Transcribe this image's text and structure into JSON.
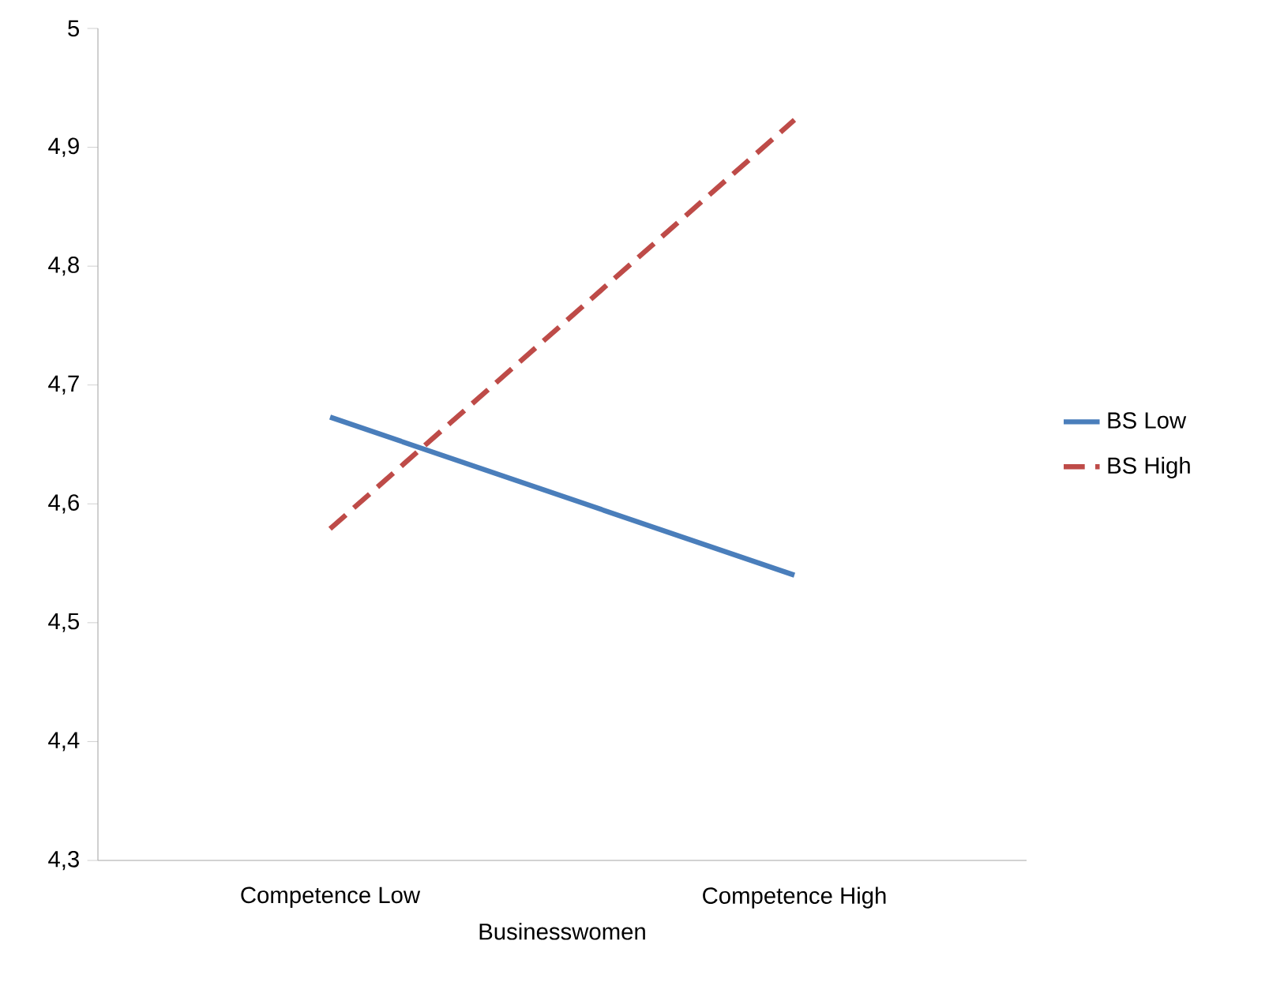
{
  "chart_data": {
    "type": "line",
    "xlabel": "Businesswomen",
    "categories": [
      "Competence Low",
      "Competence High"
    ],
    "series": [
      {
        "name": "BS Low",
        "color": "#4a7ebb",
        "line_style": "solid",
        "values": [
          4.673,
          4.54
        ]
      },
      {
        "name": "BS High",
        "color": "#be4b48",
        "line_style": "dashed",
        "values": [
          4.579,
          4.923
        ]
      }
    ],
    "ylim": [
      4.3,
      5
    ],
    "yticks": [
      {
        "value": 4.3,
        "label": "4,3"
      },
      {
        "value": 4.4,
        "label": "4,4"
      },
      {
        "value": 4.5,
        "label": "4,5"
      },
      {
        "value": 4.6,
        "label": "4,6"
      },
      {
        "value": 4.7,
        "label": "4,7"
      },
      {
        "value": 4.8,
        "label": "4,8"
      },
      {
        "value": 4.9,
        "label": "4,9"
      },
      {
        "value": 5,
        "label": "5"
      }
    ],
    "grid": false,
    "legend": "right",
    "marker": "none"
  }
}
